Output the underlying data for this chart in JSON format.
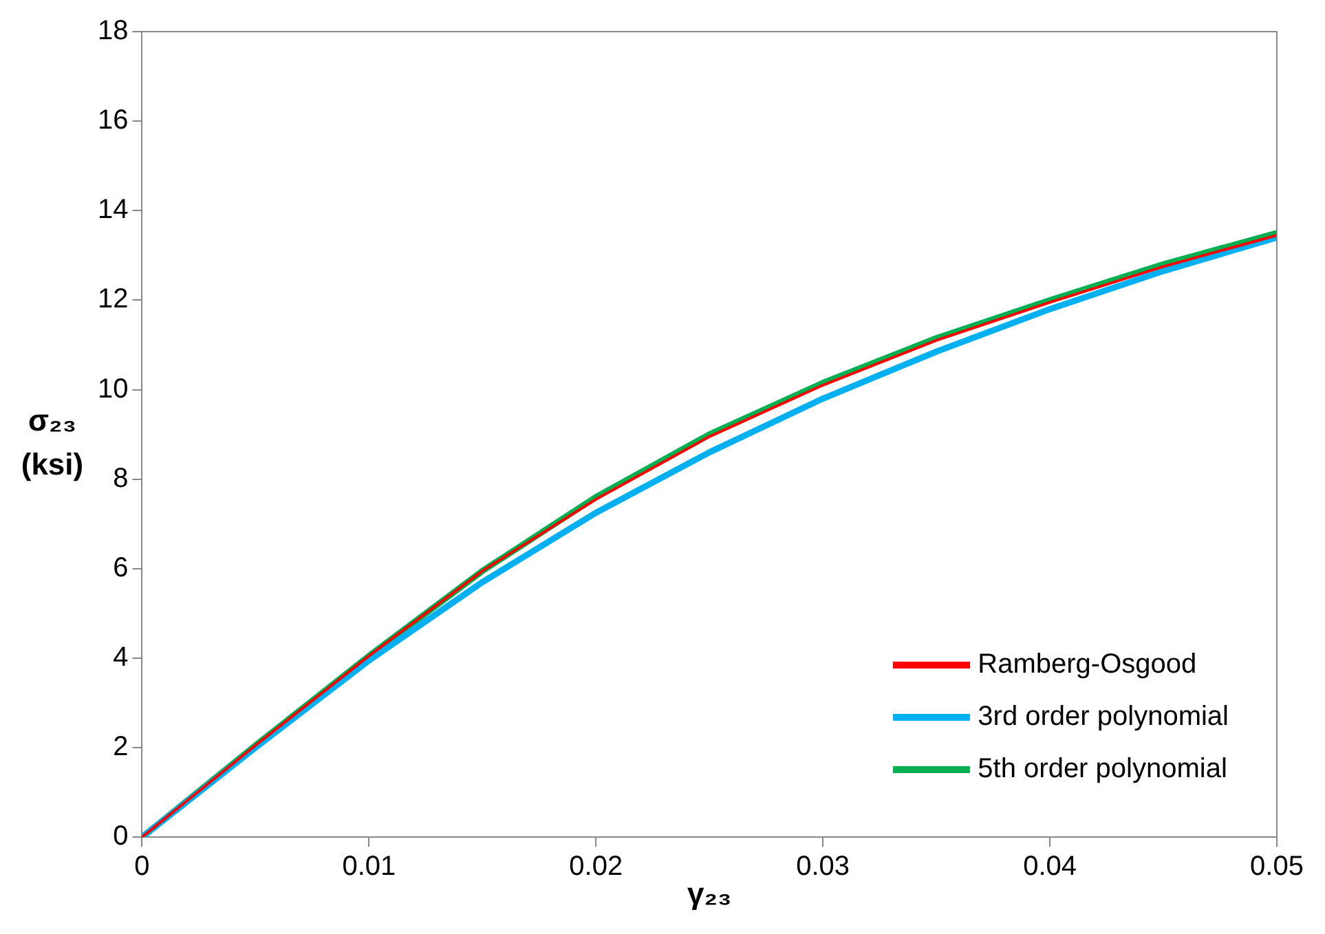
{
  "chart_data": {
    "type": "line",
    "xlabel": "γ₂₃",
    "ylabel": "σ₂₃ (ksi)",
    "x": [
      0,
      0.005,
      0.01,
      0.015,
      0.02,
      0.025,
      0.03,
      0.035,
      0.04,
      0.045,
      0.05
    ],
    "series": [
      {
        "name": "Ramberg-Osgood",
        "color": "#ff0000",
        "values": [
          0,
          2.05,
          4.05,
          5.95,
          7.55,
          8.95,
          10.1,
          11.1,
          11.95,
          12.75,
          13.45
        ]
      },
      {
        "name": "3rd order polynomial",
        "color": "#00b0f0",
        "values": [
          0,
          2.0,
          3.95,
          5.7,
          7.25,
          8.6,
          9.8,
          10.85,
          11.8,
          12.65,
          13.4
        ]
      },
      {
        "name": "5th order polynomial",
        "color": "#00b050",
        "values": [
          0,
          2.05,
          4.05,
          5.95,
          7.6,
          9.0,
          10.15,
          11.15,
          12.0,
          12.8,
          13.5
        ]
      }
    ],
    "xlim": [
      0,
      0.05
    ],
    "xticks": [
      0,
      0.01,
      0.02,
      0.03,
      0.04,
      0.05
    ],
    "ylim": [
      0,
      18
    ],
    "yticks": [
      0,
      2,
      4,
      6,
      8,
      10,
      12,
      14,
      16,
      18
    ],
    "grid": false,
    "legend": "bottom right",
    "marker": "none",
    "line_style": "solid"
  }
}
